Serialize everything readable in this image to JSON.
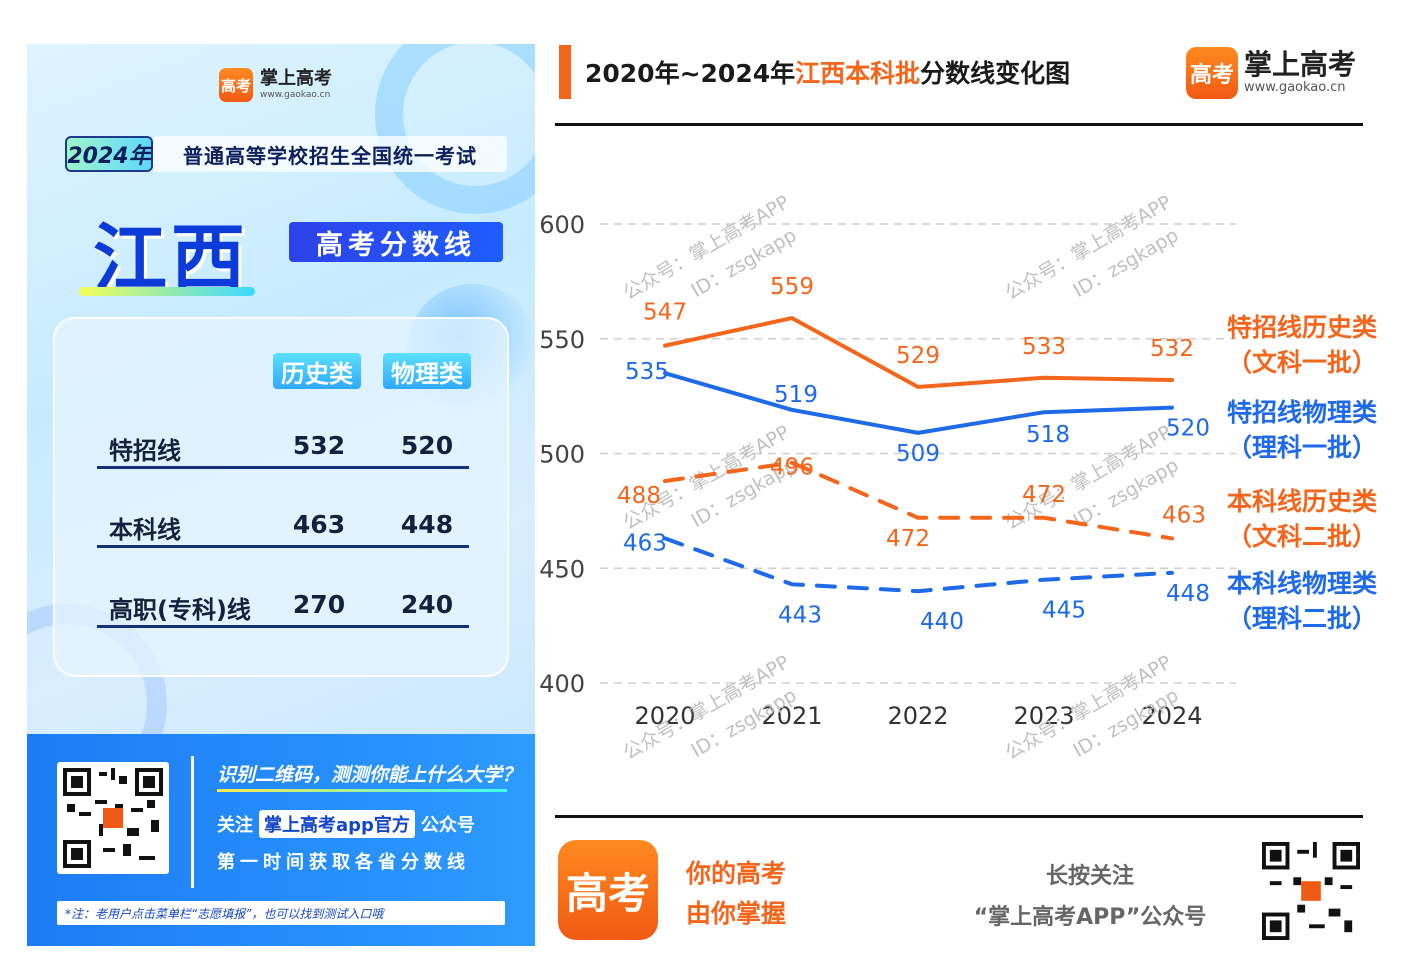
{
  "left": {
    "brand_name": "掌上高考",
    "brand_url": "www.gaokao.cn",
    "logo_text": "高考",
    "year_badge": "2024年",
    "exam_title": "普通高等学校招生全国统一考试",
    "province": "江西",
    "score_tag": "高考分数线",
    "col_headers": [
      "历史类",
      "物理类"
    ],
    "rows": [
      {
        "label": "特招线",
        "history": "532",
        "physics": "520"
      },
      {
        "label": "本科线",
        "history": "463",
        "physics": "448"
      },
      {
        "label": "高职(专科)线",
        "history": "270",
        "physics": "240"
      }
    ],
    "banner": {
      "line1": "识别二维码，测测你能上什么大学？",
      "line2_pre": "关注",
      "line2_hl": "掌上高考app官方",
      "line2_post": "公众号",
      "line3": "第一时间获取各省分数线",
      "note": "*注：老用户点击菜单栏“志愿填报”，也可以找到测试入口哦"
    }
  },
  "header": {
    "title_pre": "2020年~2024年",
    "title_hl": "江西本科批",
    "title_post": "分数线变化图",
    "brand_name": "掌上高考",
    "brand_url": "www.gaokao.cn",
    "logo_text": "高考"
  },
  "chart_data": {
    "type": "line",
    "x": [
      "2020",
      "2021",
      "2022",
      "2023",
      "2024"
    ],
    "yticks": [
      600,
      550,
      500,
      450,
      400
    ],
    "ylim": [
      400,
      600
    ],
    "grid": true,
    "series": [
      {
        "name": "特招线历史类",
        "sub": "（文科一批）",
        "values": [
          547,
          559,
          529,
          533,
          532
        ],
        "color": "#f4661b",
        "dashed": false
      },
      {
        "name": "特招线物理类",
        "sub": "（理科一批）",
        "values": [
          535,
          519,
          509,
          518,
          520
        ],
        "color": "#1e6ae8",
        "dashed": false
      },
      {
        "name": "本科线历史类",
        "sub": "（文科二批）",
        "values": [
          488,
          496,
          472,
          472,
          463
        ],
        "color": "#f4661b",
        "dashed": true
      },
      {
        "name": "本科线物理类",
        "sub": "（理科二批）",
        "values": [
          463,
          443,
          440,
          445,
          448
        ],
        "color": "#1e6ae8",
        "dashed": true
      }
    ],
    "watermark": {
      "line1": "公众号：掌上高考APP",
      "line2": "ID：zsgkapp"
    }
  },
  "footer": {
    "app_logo_text": "高考",
    "slogan1": "你的高考",
    "slogan2": "由你掌握",
    "follow1": "长按关注",
    "follow2": "“掌上高考APP”公众号"
  },
  "colors": {
    "orange": "#f4661b",
    "blue": "#1e6ae8",
    "navy": "#17307a"
  }
}
